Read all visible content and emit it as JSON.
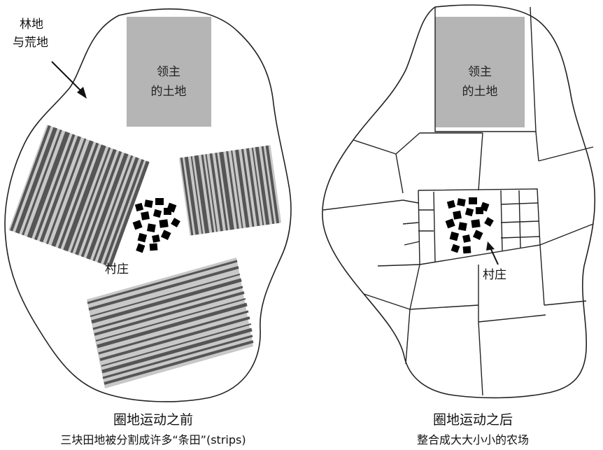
{
  "before": {
    "woodland_label_line1": "林地",
    "woodland_label_line2": "与荒地",
    "lord_land_line1": "领主",
    "lord_land_line2": "的土地",
    "village_label": "村庄",
    "caption_title": "圈地运动之前",
    "caption_subtitle": "三块田地被分割成许多“条田”(strips)"
  },
  "after": {
    "lord_land_line1": "领主",
    "lord_land_line2": "的土地",
    "village_label": "村庄",
    "caption_title": "圈地运动之后",
    "caption_subtitle": "整合成大大小小的农场"
  },
  "colors": {
    "lord_land_fill": "#b5b5b5",
    "strip_dark": "#555555",
    "strip_light": "#c8c8c8",
    "outline": "#222222"
  }
}
